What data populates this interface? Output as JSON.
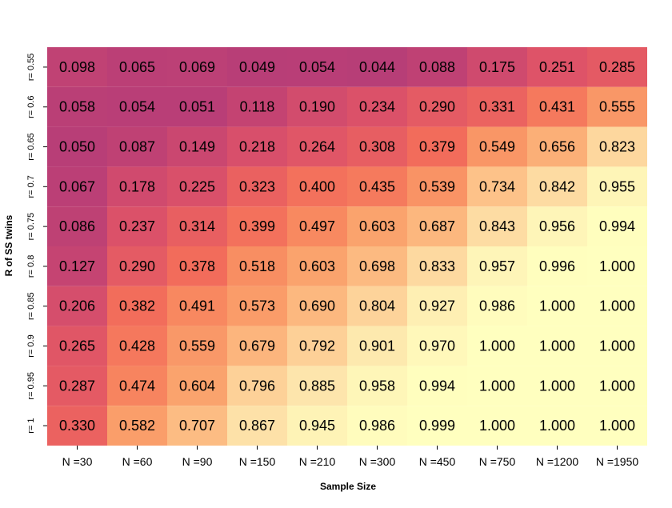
{
  "chart_data": {
    "type": "heatmap",
    "xlabel": "Sample Size",
    "ylabel": "R of SS twins",
    "x_categories": [
      "N =30",
      "N =60",
      "N =90",
      "N =150",
      "N =210",
      "N =300",
      "N =450",
      "N =750",
      "N =1200",
      "N =1950"
    ],
    "y_categories": [
      "r= 0.55",
      "r= 0.6",
      "r= 0.65",
      "r= 0.7",
      "r= 0.75",
      "r= 0.8",
      "r= 0.85",
      "r= 0.9",
      "r= 0.95",
      "r= 1"
    ],
    "values": [
      [
        0.098,
        0.065,
        0.069,
        0.049,
        0.054,
        0.044,
        0.088,
        0.175,
        0.251,
        0.285
      ],
      [
        0.058,
        0.054,
        0.051,
        0.118,
        0.19,
        0.234,
        0.29,
        0.331,
        0.431,
        0.555
      ],
      [
        0.05,
        0.087,
        0.149,
        0.218,
        0.264,
        0.308,
        0.379,
        0.549,
        0.656,
        0.823
      ],
      [
        0.067,
        0.178,
        0.225,
        0.323,
        0.4,
        0.435,
        0.539,
        0.734,
        0.842,
        0.955
      ],
      [
        0.086,
        0.237,
        0.314,
        0.399,
        0.497,
        0.603,
        0.687,
        0.843,
        0.956,
        0.994
      ],
      [
        0.127,
        0.29,
        0.378,
        0.518,
        0.603,
        0.698,
        0.833,
        0.957,
        0.996,
        1.0
      ],
      [
        0.206,
        0.382,
        0.491,
        0.573,
        0.69,
        0.804,
        0.927,
        0.986,
        1.0,
        1.0
      ],
      [
        0.265,
        0.428,
        0.559,
        0.679,
        0.792,
        0.901,
        0.97,
        1.0,
        1.0,
        1.0
      ],
      [
        0.287,
        0.474,
        0.604,
        0.796,
        0.885,
        0.958,
        0.994,
        1.0,
        1.0,
        1.0
      ],
      [
        0.33,
        0.582,
        0.707,
        0.867,
        0.945,
        0.986,
        0.999,
        1.0,
        1.0,
        1.0
      ]
    ],
    "color_scale": [
      "#b03a7a",
      "#c54472",
      "#de5368",
      "#f26b5b",
      "#f88a60",
      "#fba870",
      "#fdc68d",
      "#fde3aa",
      "#ffffbf"
    ],
    "legend": "none",
    "grid": false
  }
}
